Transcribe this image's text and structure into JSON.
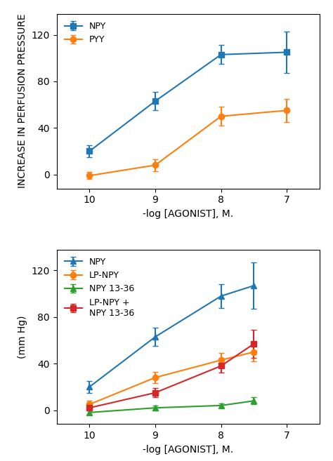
{
  "chart_data": [
    {
      "type": "line",
      "xlabel": "-log [AGONIST], M.",
      "ylabel": "INCREASE IN PERFUSION PRESSURE",
      "x": [
        10,
        9,
        8,
        7
      ],
      "series": [
        {
          "name": "NPY",
          "marker": "square",
          "values": [
            20,
            63,
            103,
            105
          ],
          "errors": [
            5,
            8,
            8,
            18
          ]
        },
        {
          "name": "PYY",
          "marker": "circle",
          "values": [
            -1,
            8,
            50,
            55
          ],
          "errors": [
            3,
            5,
            8,
            10
          ]
        }
      ],
      "xlim": [
        10.5,
        6.5
      ],
      "xticks": [
        10,
        9,
        8,
        7
      ],
      "ylim": [
        -12,
        138
      ],
      "yticks": [
        0,
        40,
        80,
        120
      ],
      "legend": "upper left"
    },
    {
      "type": "line",
      "xlabel": "-log [AGONIST], M.",
      "ylabel": "(mm Hg)",
      "x": [
        10,
        9,
        8,
        7.5
      ],
      "series": [
        {
          "name": "NPY",
          "marker": "triangle",
          "values": [
            20,
            63,
            98,
            107
          ],
          "errors": [
            5,
            8,
            10,
            20
          ]
        },
        {
          "name": "LP-NPY",
          "marker": "circle",
          "values": [
            5,
            28,
            43,
            50
          ],
          "errors": [
            3,
            5,
            6,
            8
          ]
        },
        {
          "name": "NPY 13-36",
          "marker": "triangle",
          "values": [
            -2,
            2,
            4,
            8
          ],
          "errors": [
            2,
            2,
            2,
            3
          ]
        },
        {
          "name": "LP-NPY +\nNPY 13-36",
          "marker": "square",
          "values": [
            2,
            15,
            38,
            57
          ],
          "errors": [
            2,
            4,
            6,
            12
          ]
        }
      ],
      "xlim": [
        10.5,
        6.5
      ],
      "xticks": [
        10,
        9,
        8,
        7
      ],
      "ylim": [
        -12,
        138
      ],
      "yticks": [
        0,
        40,
        80,
        120
      ],
      "legend": "upper left"
    }
  ]
}
